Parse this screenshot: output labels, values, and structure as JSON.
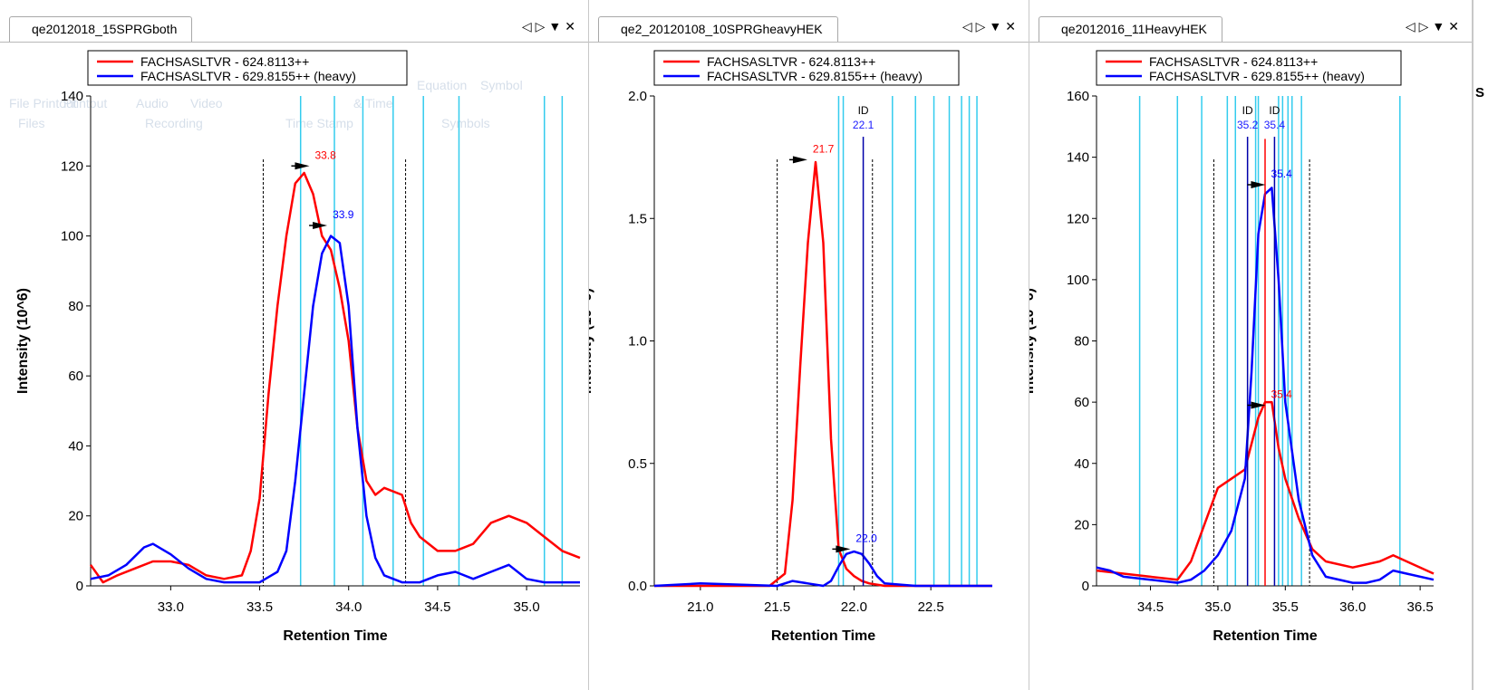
{
  "panes": [
    {
      "tab_title": "qe2012018_15SPRGboth",
      "chart_data": {
        "type": "line",
        "xlabel": "Retention Time",
        "ylabel": "Intensity (10^6)",
        "xlim": [
          32.55,
          35.3
        ],
        "ylim": [
          0,
          140
        ],
        "xticks": [
          33.0,
          33.5,
          34.0,
          34.5,
          35.0
        ],
        "xtick_labels": [
          "33.0",
          "33.5",
          "34.0",
          "34.5",
          "35.0"
        ],
        "yticks": [
          0,
          20,
          40,
          60,
          80,
          100,
          120,
          140
        ],
        "ytick_labels": [
          "0",
          "20",
          "40",
          "60",
          "80",
          "100",
          "120",
          "140"
        ],
        "legend_position": "top-left",
        "series": [
          {
            "name": "FACHSASLTVR - 624.8113++",
            "color": "#ff0000",
            "x": [
              32.55,
              32.62,
              32.7,
              32.8,
              32.9,
              33.0,
              33.1,
              33.2,
              33.3,
              33.4,
              33.45,
              33.5,
              33.55,
              33.6,
              33.65,
              33.7,
              33.75,
              33.8,
              33.85,
              33.9,
              33.95,
              34.0,
              34.05,
              34.1,
              34.15,
              34.2,
              34.3,
              34.35,
              34.4,
              34.45,
              34.5,
              34.6,
              34.7,
              34.8,
              34.9,
              35.0,
              35.1,
              35.2,
              35.3
            ],
            "y": [
              6,
              1,
              3,
              5,
              7,
              7,
              6,
              3,
              2,
              3,
              10,
              25,
              55,
              80,
              100,
              115,
              118,
              112,
              100,
              96,
              85,
              70,
              45,
              30,
              26,
              28,
              26,
              18,
              14,
              12,
              10,
              10,
              12,
              18,
              20,
              18,
              14,
              10,
              8
            ]
          },
          {
            "name": "FACHSASLTVR - 629.8155++ (heavy)",
            "color": "#0000ff",
            "x": [
              32.55,
              32.65,
              32.75,
              32.85,
              32.9,
              33.0,
              33.1,
              33.2,
              33.3,
              33.4,
              33.5,
              33.6,
              33.65,
              33.7,
              33.75,
              33.8,
              33.85,
              33.9,
              33.95,
              34.0,
              34.05,
              34.1,
              34.15,
              34.2,
              34.3,
              34.4,
              34.5,
              34.6,
              34.7,
              34.8,
              34.9,
              35.0,
              35.1,
              35.2,
              35.3
            ],
            "y": [
              2,
              3,
              6,
              11,
              12,
              9,
              5,
              2,
              1,
              1,
              1,
              4,
              10,
              30,
              55,
              80,
              95,
              100,
              98,
              80,
              45,
              20,
              8,
              3,
              1,
              1,
              3,
              4,
              2,
              4,
              6,
              2,
              1,
              1,
              1
            ]
          }
        ],
        "peak_annotations": [
          {
            "label": "33.8",
            "x": 33.8,
            "y": 120,
            "color": "#ff0000"
          },
          {
            "label": "33.9",
            "x": 33.9,
            "y": 103,
            "color": "#0000ff"
          }
        ],
        "boundaries": [
          33.52,
          34.32
        ],
        "id_lines": [
          33.73,
          33.92,
          34.08,
          34.25,
          34.42,
          34.62,
          35.1,
          35.2
        ]
      }
    },
    {
      "tab_title": "qe2_20120108_10SPRGheavyHEK",
      "chart_data": {
        "type": "line",
        "xlabel": "Retention Time",
        "ylabel": "Intensity (10^9)",
        "xlim": [
          20.7,
          22.9
        ],
        "ylim": [
          0,
          2.0
        ],
        "xticks": [
          21.0,
          21.5,
          22.0,
          22.5
        ],
        "xtick_labels": [
          "21.0",
          "21.5",
          "22.0",
          "22.5"
        ],
        "yticks": [
          0,
          0.5,
          1.0,
          1.5,
          2.0
        ],
        "ytick_labels": [
          "0.0",
          "0.5",
          "1.0",
          "1.5",
          "2.0"
        ],
        "legend_position": "top-left",
        "series": [
          {
            "name": "FACHSASLTVR - 624.8113++",
            "color": "#ff0000",
            "x": [
              20.7,
              21.0,
              21.3,
              21.45,
              21.55,
              21.6,
              21.65,
              21.7,
              21.75,
              21.8,
              21.85,
              21.9,
              21.95,
              22.0,
              22.05,
              22.1,
              22.2,
              22.4,
              22.9
            ],
            "y": [
              0,
              0,
              0,
              0,
              0.05,
              0.35,
              0.9,
              1.4,
              1.73,
              1.4,
              0.6,
              0.15,
              0.07,
              0.04,
              0.02,
              0.01,
              0,
              0,
              0
            ]
          },
          {
            "name": "FACHSASLTVR - 629.8155++ (heavy)",
            "color": "#0000ff",
            "x": [
              20.7,
              21.0,
              21.5,
              21.6,
              21.7,
              21.8,
              21.85,
              21.9,
              21.95,
              22.0,
              22.05,
              22.1,
              22.15,
              22.2,
              22.4,
              22.9
            ],
            "y": [
              0,
              0.01,
              0,
              0.02,
              0.01,
              0,
              0.02,
              0.08,
              0.13,
              0.14,
              0.13,
              0.09,
              0.04,
              0.01,
              0,
              0
            ]
          }
        ],
        "peak_annotations": [
          {
            "label": "21.7",
            "x": 21.72,
            "y": 1.74,
            "color": "#ff0000"
          },
          {
            "label": "22.0",
            "x": 22.0,
            "y": 0.15,
            "color": "#0000ff"
          }
        ],
        "id_marker": {
          "label": "ID",
          "value": "22.1",
          "x": 22.06
        },
        "boundaries": [
          21.5,
          22.12
        ],
        "id_lines": [
          21.9,
          21.93,
          22.25,
          22.4,
          22.52,
          22.62,
          22.7,
          22.75,
          22.8
        ]
      }
    },
    {
      "tab_title": "qe2012016_11HeavyHEK",
      "chart_data": {
        "type": "line",
        "xlabel": "Retention Time",
        "ylabel": "Intensity (10^6)",
        "xlim": [
          34.1,
          36.6
        ],
        "ylim": [
          0,
          160
        ],
        "xticks": [
          34.5,
          35.0,
          35.5,
          36.0,
          36.5
        ],
        "xtick_labels": [
          "34.5",
          "35.0",
          "35.5",
          "36.0",
          "36.5"
        ],
        "yticks": [
          0,
          20,
          40,
          60,
          80,
          100,
          120,
          140,
          160
        ],
        "ytick_labels": [
          "0",
          "20",
          "40",
          "60",
          "80",
          "100",
          "120",
          "140",
          "160"
        ],
        "legend_position": "top-left",
        "series": [
          {
            "name": "FACHSASLTVR - 624.8113++",
            "color": "#ff0000",
            "x": [
              34.1,
              34.3,
              34.5,
              34.7,
              34.8,
              34.9,
              35.0,
              35.1,
              35.2,
              35.3,
              35.35,
              35.4,
              35.45,
              35.5,
              35.6,
              35.7,
              35.8,
              36.0,
              36.2,
              36.3,
              36.4,
              36.6
            ],
            "y": [
              5,
              4,
              3,
              2,
              8,
              20,
              32,
              35,
              38,
              55,
              60,
              60,
              45,
              35,
              22,
              12,
              8,
              6,
              8,
              10,
              8,
              4
            ]
          },
          {
            "name": "FACHSASLTVR - 629.8155++ (heavy)",
            "color": "#0000ff",
            "x": [
              34.1,
              34.2,
              34.3,
              34.5,
              34.7,
              34.8,
              34.9,
              35.0,
              35.1,
              35.2,
              35.25,
              35.3,
              35.35,
              35.4,
              35.45,
              35.5,
              35.6,
              35.7,
              35.8,
              36.0,
              36.1,
              36.2,
              36.3,
              36.4,
              36.6
            ],
            "y": [
              6,
              5,
              3,
              2,
              1,
              2,
              5,
              10,
              18,
              35,
              70,
              115,
              128,
              130,
              100,
              60,
              28,
              10,
              3,
              1,
              1,
              2,
              5,
              4,
              2
            ]
          }
        ],
        "peak_annotations": [
          {
            "label": "35.4",
            "x": 35.38,
            "y": 131,
            "color": "#0000ff"
          },
          {
            "label": "35.4",
            "x": 35.38,
            "y": 59,
            "color": "#ff0000"
          }
        ],
        "id_markers": [
          {
            "label": "ID",
            "value": "35.2",
            "x": 35.22
          },
          {
            "label": "ID",
            "value": "35.4",
            "x": 35.42
          }
        ],
        "red_marker_x": 35.35,
        "boundaries": [
          34.97,
          35.68
        ],
        "id_lines": [
          34.42,
          34.7,
          34.88,
          35.07,
          35.13,
          35.28,
          35.3,
          35.45,
          35.48,
          35.52,
          35.55,
          35.62,
          36.35
        ]
      }
    }
  ],
  "background_ribbon": {
    "groups": [
      "Files",
      "Recording",
      "Time Stamp",
      "Symbols"
    ],
    "items": [
      "File Printout",
      "Printout",
      "Scanner",
      "Audio",
      "Video",
      "& Time",
      "Equation",
      "Symbol"
    ]
  },
  "right_strip_label": "S"
}
